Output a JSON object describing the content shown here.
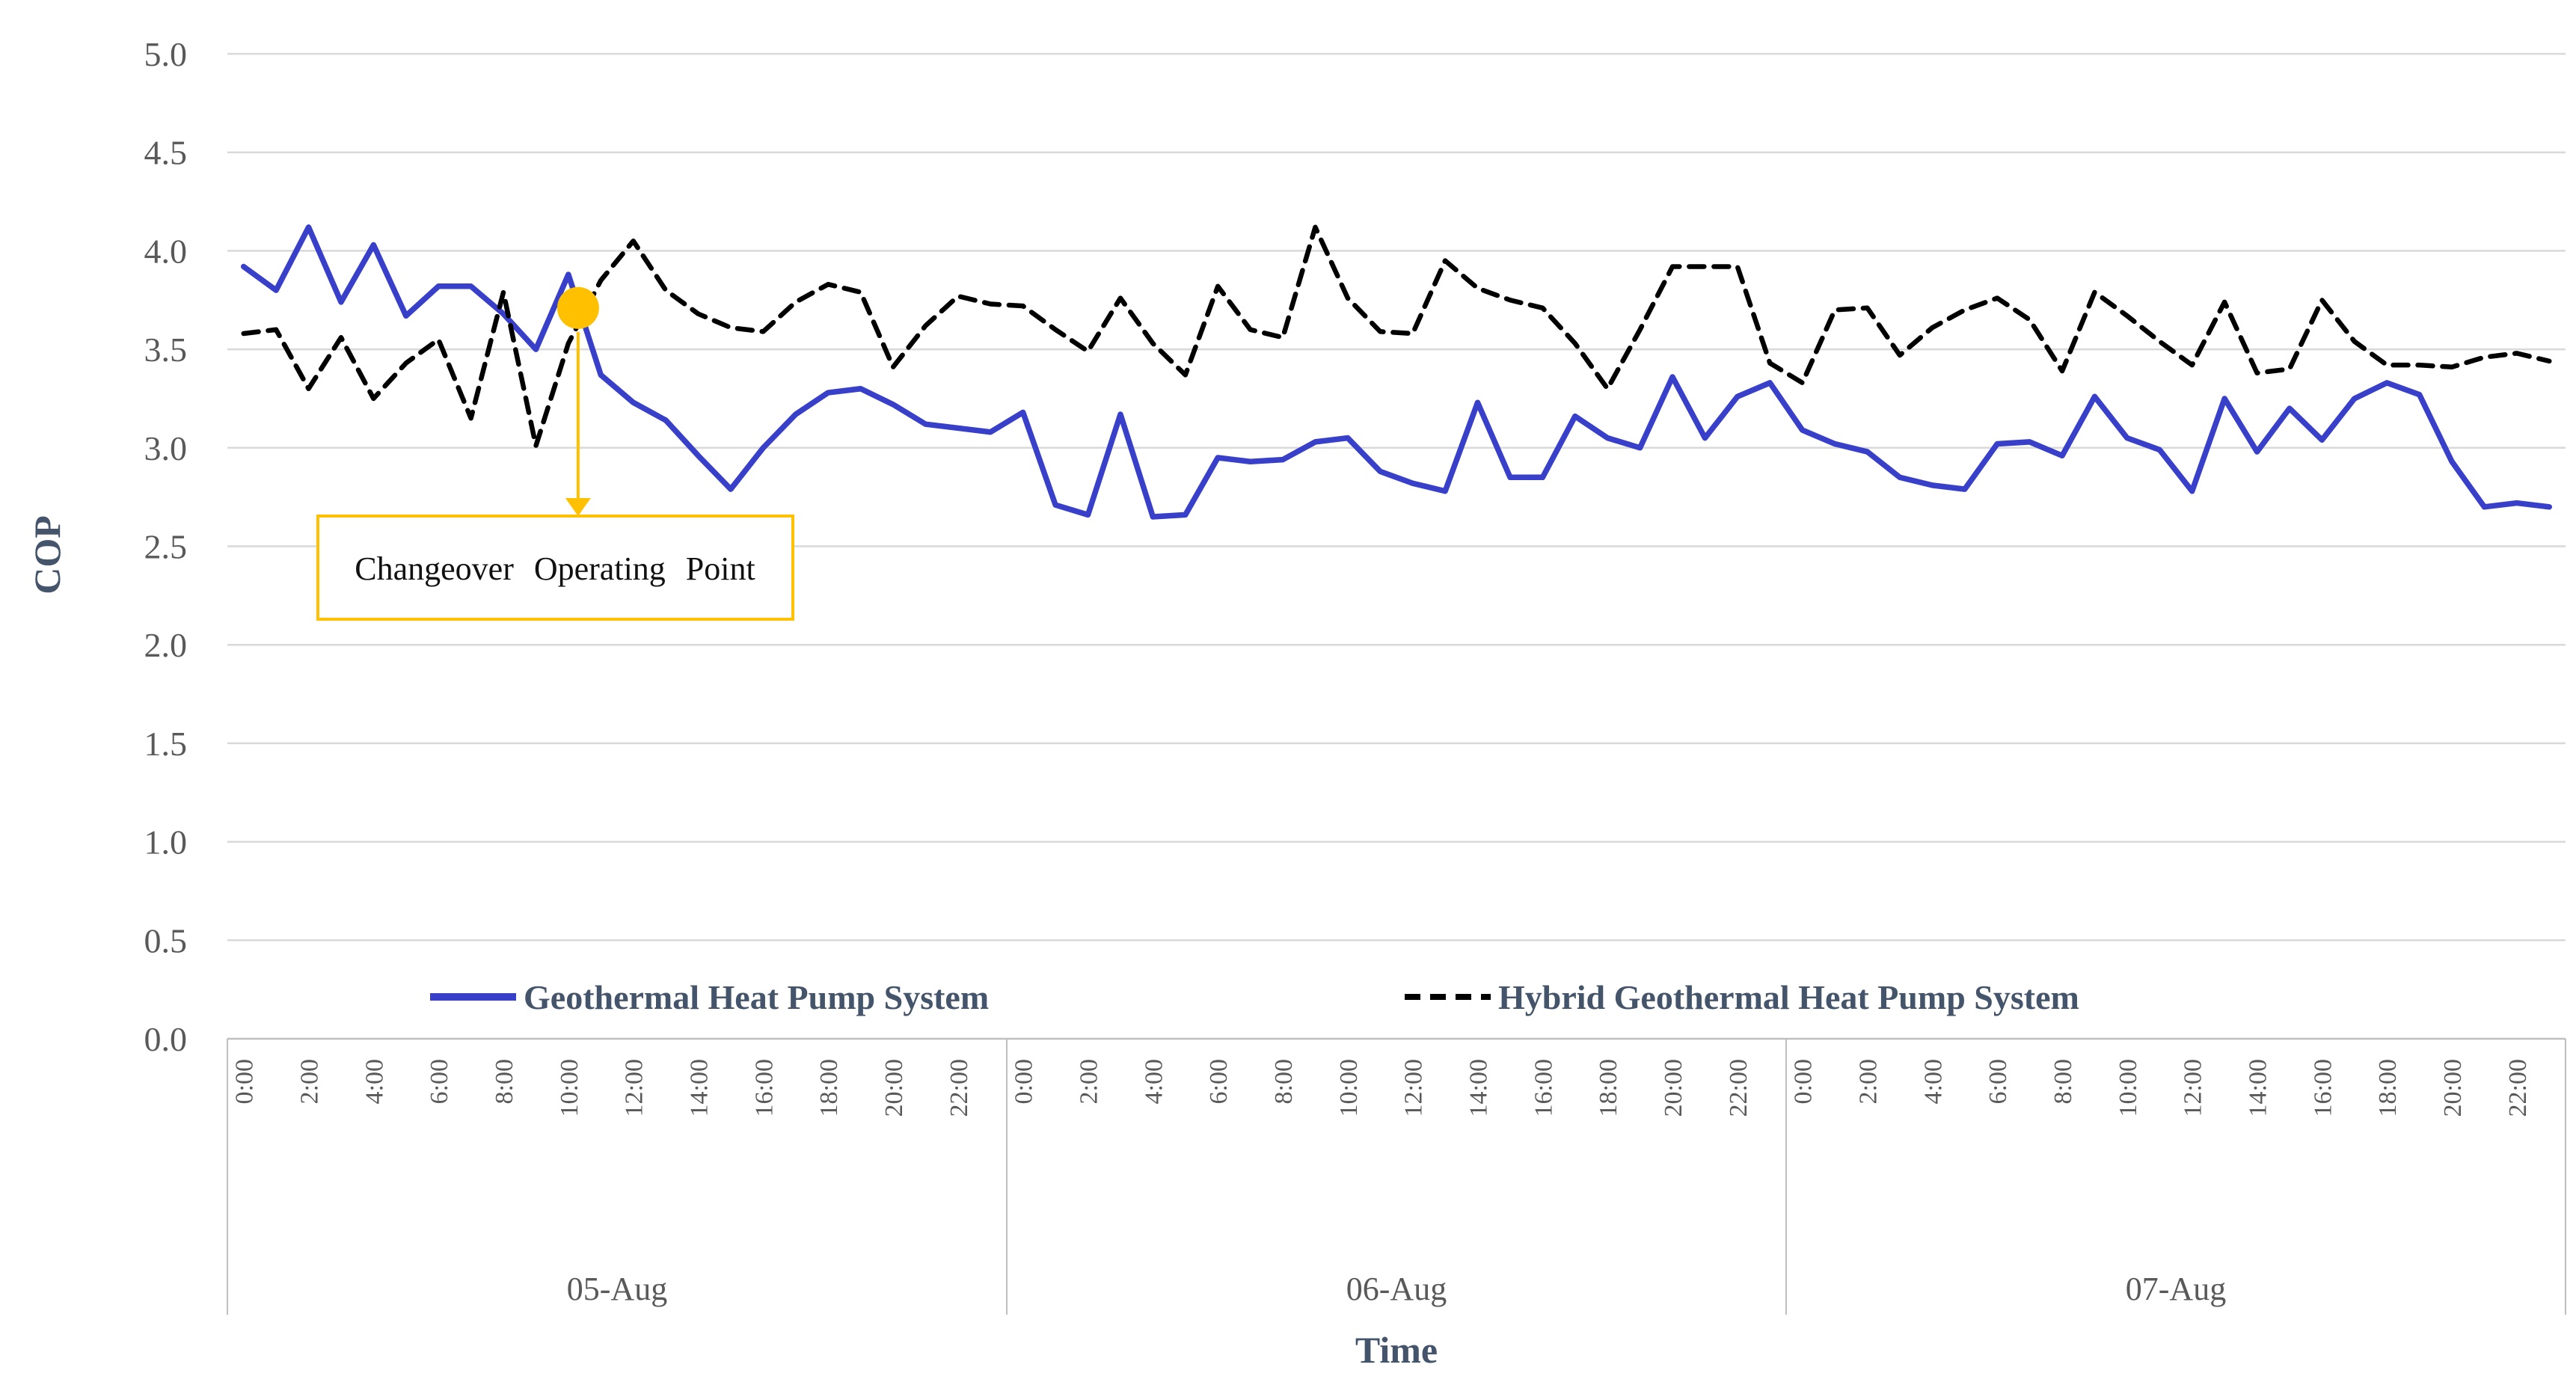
{
  "chart_data": {
    "type": "line",
    "xlabel": "Time",
    "ylabel": "COP",
    "ylim": [
      0.0,
      5.0
    ],
    "ytick_step": 0.5,
    "grid": "horizontal",
    "legend_position": "bottom",
    "days": [
      "05-Aug",
      "06-Aug",
      "07-Aug"
    ],
    "hour_tick_labels": [
      "0:00",
      "2:00",
      "4:00",
      "6:00",
      "8:00",
      "10:00",
      "12:00",
      "14:00",
      "16:00",
      "18:00",
      "20:00",
      "22:00"
    ],
    "series": [
      {
        "name": "Geothermal Heat Pump System",
        "style": "solid",
        "color": "#383FC9",
        "values": [
          3.92,
          3.8,
          4.12,
          3.74,
          4.03,
          3.67,
          3.82,
          3.82,
          3.68,
          3.5,
          3.88,
          3.37,
          3.23,
          3.14,
          2.96,
          2.79,
          3.0,
          3.17,
          3.28,
          3.3,
          3.22,
          3.12,
          3.1,
          3.08,
          3.18,
          2.71,
          2.66,
          3.17,
          2.65,
          2.66,
          2.95,
          2.93,
          2.94,
          3.03,
          3.05,
          2.88,
          2.82,
          2.78,
          3.23,
          2.85,
          2.85,
          3.16,
          3.05,
          3.0,
          3.36,
          3.05,
          3.26,
          3.33,
          3.09,
          3.02,
          2.98,
          2.85,
          2.81,
          2.79,
          3.02,
          3.03,
          2.96,
          3.26,
          3.05,
          2.99,
          2.78,
          3.25,
          2.98,
          3.2,
          3.04,
          3.25,
          3.33,
          3.27,
          2.93,
          2.7,
          2.72,
          2.7
        ]
      },
      {
        "name": "Hybrid Geothermal Heat Pump System",
        "style": "dashed",
        "color": "#000000",
        "values": [
          3.58,
          3.6,
          3.3,
          3.56,
          3.25,
          3.43,
          3.55,
          3.15,
          3.79,
          3.01,
          3.53,
          3.85,
          4.05,
          3.8,
          3.68,
          3.61,
          3.59,
          3.74,
          3.83,
          3.79,
          3.41,
          3.62,
          3.77,
          3.73,
          3.72,
          3.6,
          3.49,
          3.76,
          3.53,
          3.37,
          3.82,
          3.6,
          3.56,
          4.12,
          3.76,
          3.59,
          3.58,
          3.95,
          3.81,
          3.75,
          3.71,
          3.53,
          3.3,
          3.6,
          3.92,
          3.92,
          3.92,
          3.43,
          3.33,
          3.7,
          3.71,
          3.47,
          3.61,
          3.7,
          3.76,
          3.65,
          3.39,
          3.79,
          3.67,
          3.54,
          3.42,
          3.74,
          3.38,
          3.4,
          3.75,
          3.54,
          3.42,
          3.42,
          3.41,
          3.46,
          3.48,
          3.44
        ]
      }
    ],
    "annotation": {
      "label": "Changeover Operating Point",
      "hour_index": 10.3,
      "cop": 3.71,
      "color": "#FFC000"
    }
  },
  "colors": {
    "gridline": "#D9D9D9",
    "axis_line": "#BFBFBF",
    "tick_text": "#595959",
    "title_text": "#44546A",
    "annotation_gold": "#FFC000"
  }
}
